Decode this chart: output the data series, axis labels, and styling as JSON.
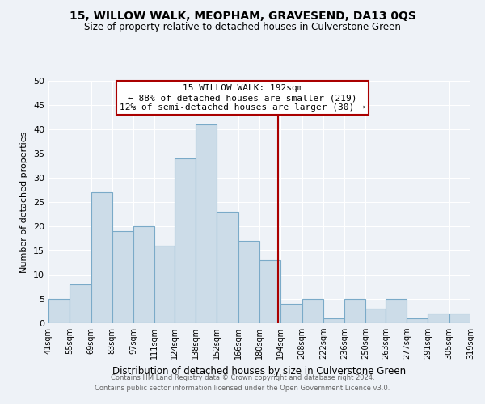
{
  "title": "15, WILLOW WALK, MEOPHAM, GRAVESEND, DA13 0QS",
  "subtitle": "Size of property relative to detached houses in Culverstone Green",
  "xlabel": "Distribution of detached houses by size in Culverstone Green",
  "ylabel": "Number of detached properties",
  "footer_line1": "Contains HM Land Registry data © Crown copyright and database right 2024.",
  "footer_line2": "Contains public sector information licensed under the Open Government Licence v3.0.",
  "bin_edges": [
    41,
    55,
    69,
    83,
    97,
    111,
    124,
    138,
    152,
    166,
    180,
    194,
    208,
    222,
    236,
    250,
    263,
    277,
    291,
    305,
    319
  ],
  "bin_heights": [
    5,
    8,
    27,
    19,
    20,
    16,
    34,
    41,
    23,
    17,
    13,
    4,
    5,
    1,
    5,
    3,
    5,
    1,
    2,
    2
  ],
  "bar_color": "#ccdce8",
  "bar_edgecolor": "#7aaac8",
  "reference_line_x": 192,
  "reference_line_color": "#aa0000",
  "annotation_title": "15 WILLOW WALK: 192sqm",
  "annotation_line1": "← 88% of detached houses are smaller (219)",
  "annotation_line2": "12% of semi-detached houses are larger (30) →",
  "annotation_box_facecolor": "#ffffff",
  "annotation_box_edgecolor": "#aa0000",
  "ylim": [
    0,
    50
  ],
  "yticks": [
    0,
    5,
    10,
    15,
    20,
    25,
    30,
    35,
    40,
    45,
    50
  ],
  "tick_labels": [
    "41sqm",
    "55sqm",
    "69sqm",
    "83sqm",
    "97sqm",
    "111sqm",
    "124sqm",
    "138sqm",
    "152sqm",
    "166sqm",
    "180sqm",
    "194sqm",
    "208sqm",
    "222sqm",
    "236sqm",
    "250sqm",
    "263sqm",
    "277sqm",
    "291sqm",
    "305sqm",
    "319sqm"
  ],
  "background_color": "#eef2f7",
  "grid_color": "#ffffff",
  "title_fontsize": 10,
  "subtitle_fontsize": 8.5,
  "ylabel_fontsize": 8,
  "xlabel_fontsize": 8.5,
  "ytick_fontsize": 8,
  "xtick_fontsize": 7,
  "footer_fontsize": 6,
  "footer_color": "#666666"
}
